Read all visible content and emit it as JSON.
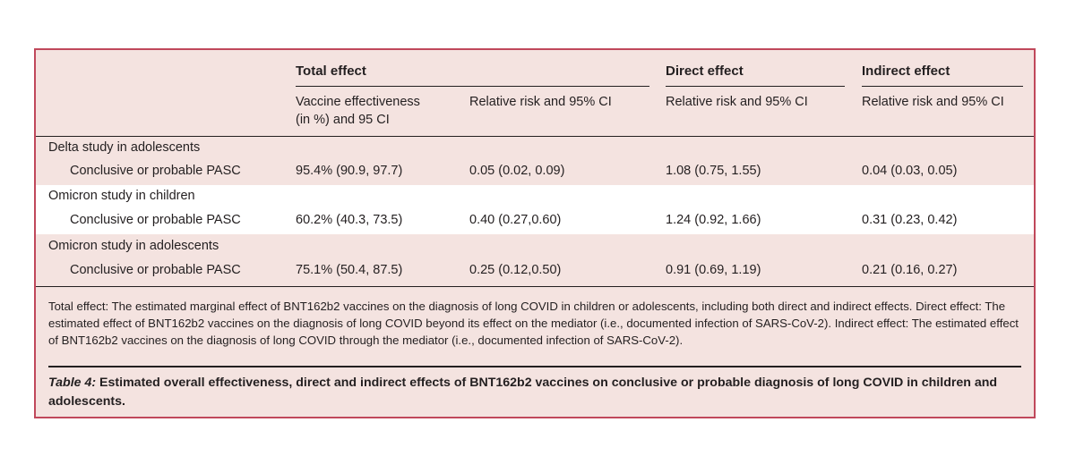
{
  "table": {
    "groups": {
      "total": "Total effect",
      "direct": "Direct effect",
      "indirect": "Indirect effect"
    },
    "subheaders": {
      "ve_line1": "Vaccine effectiveness",
      "ve_line2": "(in %) and 95 CI",
      "rr_total": "Relative risk and 95% CI",
      "rr_direct": "Relative risk and 95% CI",
      "rr_indirect": "Relative risk and 95% CI"
    },
    "sections": [
      {
        "title": "Delta study in adolescents",
        "row_label": "Conclusive or probable PASC",
        "ve": "95.4% (90.9, 97.7)",
        "rr_total": "0.05 (0.02, 0.09)",
        "rr_direct": "1.08 (0.75, 1.55)",
        "rr_indirect": "0.04 (0.03, 0.05)"
      },
      {
        "title": "Omicron study in children",
        "row_label": "Conclusive or probable PASC",
        "ve": "60.2% (40.3, 73.5)",
        "rr_total": "0.40 (0.27,0.60)",
        "rr_direct": "1.24 (0.92, 1.66)",
        "rr_indirect": "0.31 (0.23, 0.42)"
      },
      {
        "title": "Omicron study in adolescents",
        "row_label": "Conclusive or probable PASC",
        "ve": "75.1% (50.4, 87.5)",
        "rr_total": "0.25 (0.12,0.50)",
        "rr_direct": "0.91 (0.69, 1.19)",
        "rr_indirect": "0.21 (0.16, 0.27)"
      }
    ],
    "footnote": "Total effect: The estimated marginal effect of BNT162b2 vaccines on the diagnosis of long COVID in children or adolescents, including both direct and indirect effects. Direct effect: The estimated effect of BNT162b2 vaccines on the diagnosis of long COVID beyond its effect on the mediator (i.e., documented infection of SARS-CoV-2). Indirect effect: The estimated effect of BNT162b2 vaccines on the diagnosis of long COVID through the mediator (i.e., documented infection of SARS-CoV-2).",
    "caption_label": "Table 4:",
    "caption_text": "Estimated overall effectiveness, direct and indirect effects of BNT162b2 vaccines on conclusive or probable diagnosis of long COVID in children and adolescents."
  },
  "colors": {
    "background": "#f4e3e0",
    "border": "#c0485b",
    "highlight_band": "#ffffff"
  }
}
